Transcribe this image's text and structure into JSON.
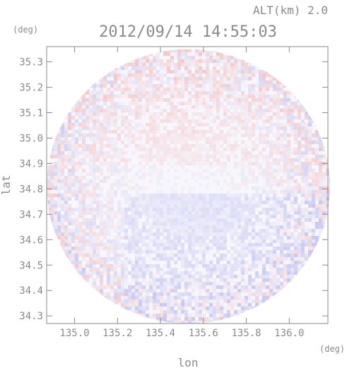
{
  "chart_data": {
    "type": "heatmap",
    "title": "2012/09/14 14:55:03",
    "subtitle": "ALT(km) 2.0",
    "xlabel": "lon",
    "ylabel": "lat",
    "x_unit": "(deg)",
    "y_unit": "(deg)",
    "xlim": [
      134.87,
      136.18
    ],
    "ylim": [
      34.27,
      35.36
    ],
    "x_ticks": [
      135.0,
      135.2,
      135.4,
      135.6,
      135.8,
      136.0
    ],
    "x_tick_labels": [
      "135.0",
      "135.2",
      "135.4",
      "135.6",
      "135.8",
      "136.0"
    ],
    "y_ticks": [
      34.3,
      34.4,
      34.5,
      34.6,
      34.7,
      34.8,
      34.9,
      35.0,
      35.1,
      35.2,
      35.3
    ],
    "y_tick_labels": [
      "34.3",
      "34.4",
      "34.5",
      "34.6",
      "34.7",
      "34.8",
      "34.9",
      "35.0",
      "35.1",
      "35.2",
      "35.3"
    ],
    "grid": false,
    "legend": "none",
    "domain_center": [
      135.53,
      34.81
    ],
    "domain_radius_deg": [
      0.66,
      0.54
    ],
    "colors": {
      "positive": "#f4b9b9",
      "negative": "#b9b9ee",
      "neutral": "#f6f6fc",
      "axis": "#8a8a8a"
    }
  }
}
